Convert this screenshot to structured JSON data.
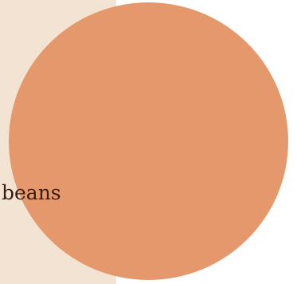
{
  "colors": {
    "panel": "#f3e3d2",
    "circle": "#e4986b",
    "text": "#3a1c0c"
  },
  "label": {
    "text": "beans"
  }
}
